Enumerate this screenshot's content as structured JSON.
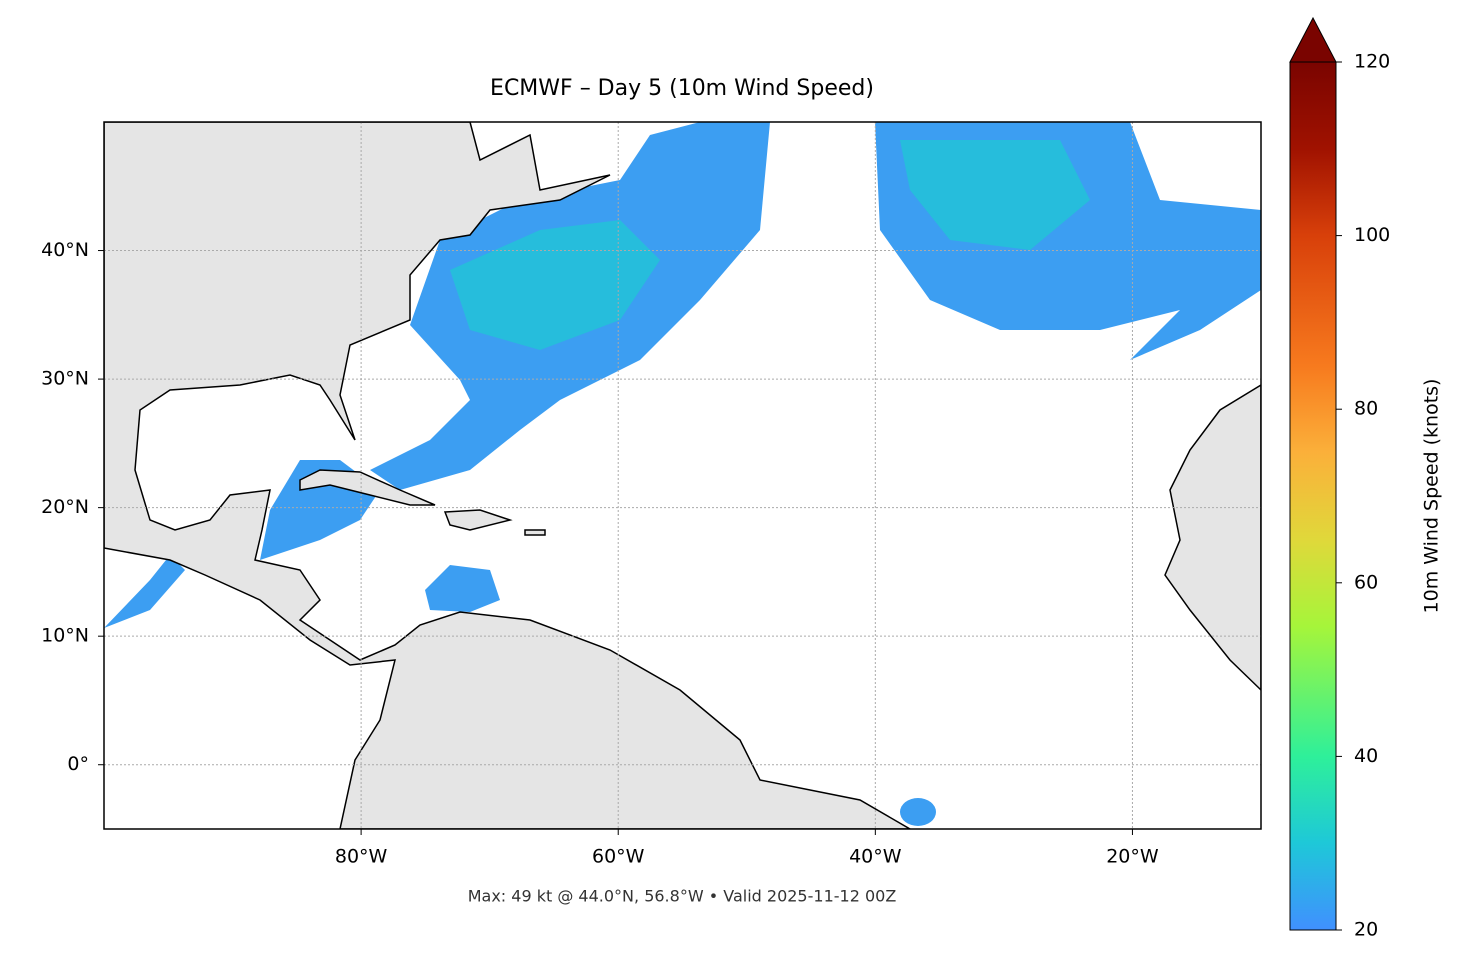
{
  "chart_data": {
    "type": "map",
    "title": "ECMWF – Day 5 (10m Wind Speed)",
    "xlim": [
      -100,
      -10
    ],
    "ylim": [
      -5,
      50
    ],
    "xticks": [
      {
        "value": -80,
        "label": "80°W"
      },
      {
        "value": -60,
        "label": "60°W"
      },
      {
        "value": -40,
        "label": "40°W"
      },
      {
        "value": -20,
        "label": "20°W"
      }
    ],
    "yticks": [
      {
        "value": 0,
        "label": "0°"
      },
      {
        "value": 10,
        "label": "10°N"
      },
      {
        "value": 20,
        "label": "20°N"
      },
      {
        "value": 30,
        "label": "30°N"
      },
      {
        "value": 40,
        "label": "40°N"
      }
    ],
    "grid": true,
    "colorbar": {
      "label": "10m Wind Speed (knots)",
      "lim": [
        20,
        120
      ],
      "ticks": [
        20,
        40,
        60,
        80,
        100,
        120
      ]
    },
    "footer": "Max: 49 kt @ 44.0°N, 56.8°W • Valid 2025-11-12 00Z"
  }
}
